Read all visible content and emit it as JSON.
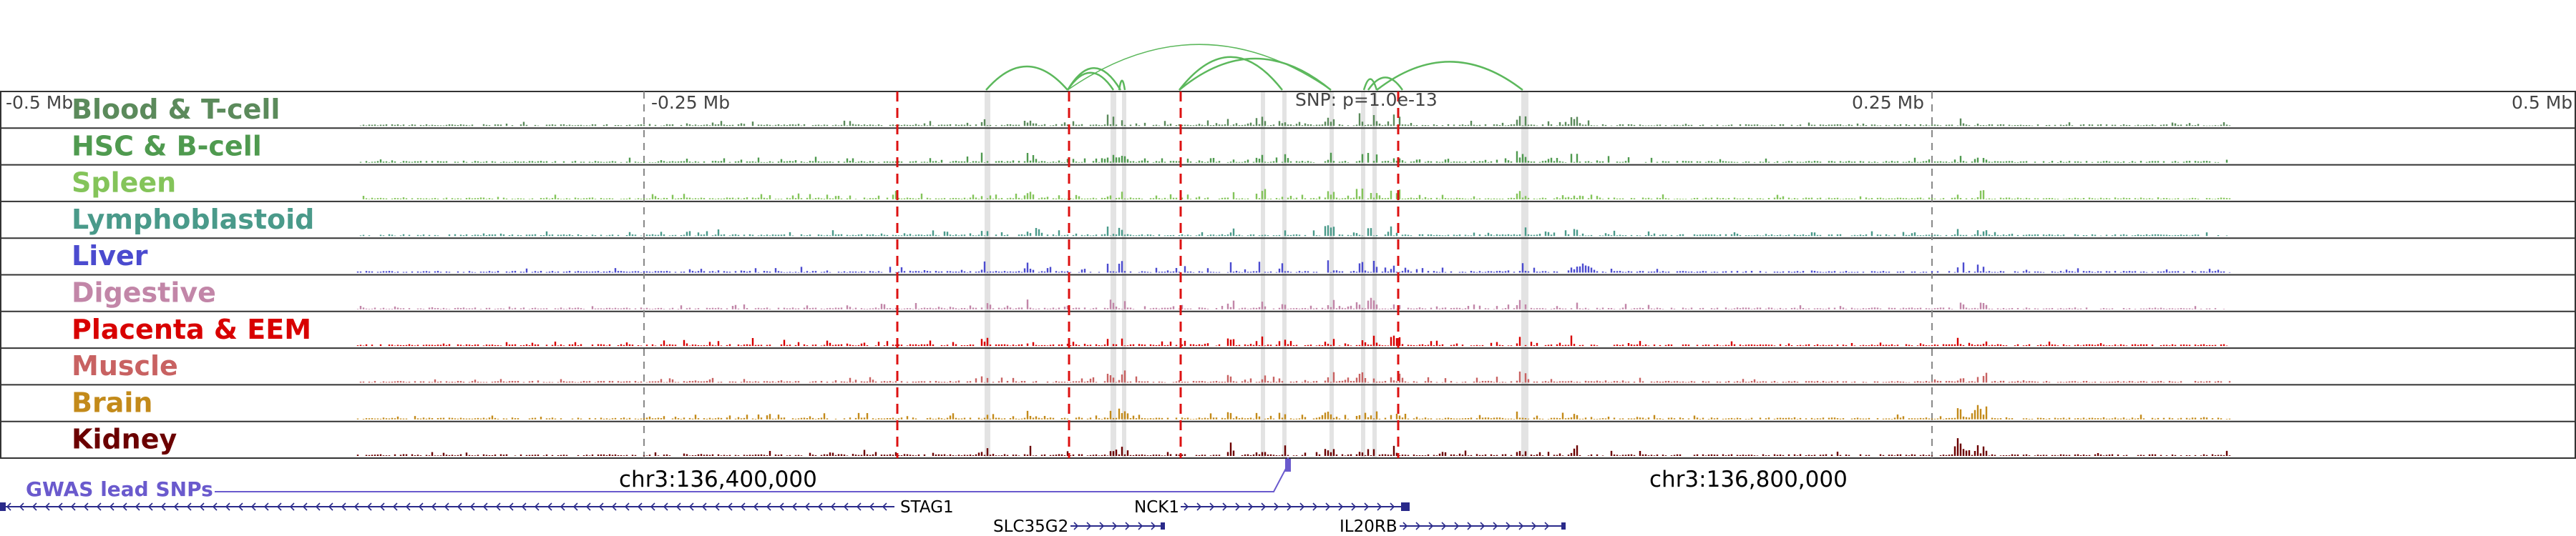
{
  "axis": {
    "ticks": [
      "-0.5 Mb",
      "-0.25 Mb",
      "0.25 Mb",
      "0.5 Mb"
    ],
    "snp_label": "SNP: p=1.0e-13"
  },
  "coordinates": [
    "chr3:136,400,000",
    "chr3:136,800,000"
  ],
  "tracks": [
    {
      "label": "Blood & T-cell",
      "color": "#5b8a5b"
    },
    {
      "label": "HSC & B-cell",
      "color": "#4f9a4f"
    },
    {
      "label": "Spleen",
      "color": "#84c45a"
    },
    {
      "label": "Lymphoblastoid",
      "color": "#4a9a8a"
    },
    {
      "label": "Liver",
      "color": "#4b4bcf"
    },
    {
      "label": "Digestive",
      "color": "#c286a8"
    },
    {
      "label": "Placenta & EEM",
      "color": "#d80000"
    },
    {
      "label": "Muscle",
      "color": "#c86262"
    },
    {
      "label": "Brain",
      "color": "#c38a1a"
    },
    {
      "label": "Kidney",
      "color": "#6b0000"
    }
  ],
  "gwas": {
    "label": "GWAS lead SNPs",
    "color": "#6a5acd"
  },
  "genes": [
    {
      "name": "STAG1"
    },
    {
      "name": "NCK1"
    },
    {
      "name": "SLC35G2"
    },
    {
      "name": "IL20RB"
    }
  ],
  "colors": {
    "arc": "#5cb85c",
    "red_line": "#dd1111",
    "gene": "#2a2a8a"
  }
}
